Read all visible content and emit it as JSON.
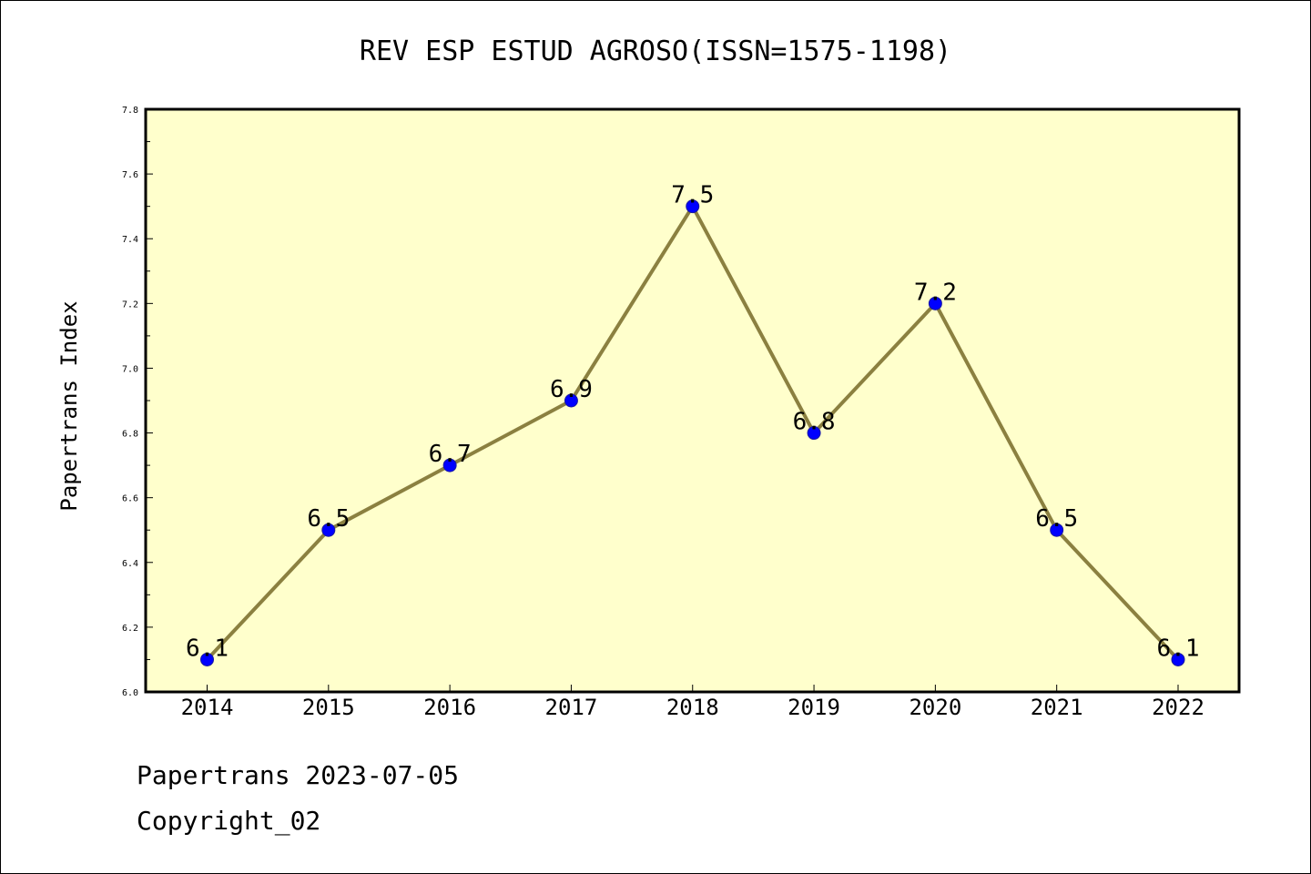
{
  "chart_data": {
    "type": "line",
    "title": "REV ESP ESTUD AGROSO(ISSN=1575-1198)",
    "xlabel": "",
    "ylabel": "Papertrans Index",
    "categories": [
      "2014",
      "2015",
      "2016",
      "2017",
      "2018",
      "2019",
      "2020",
      "2021",
      "2022"
    ],
    "values": [
      6.1,
      6.5,
      6.7,
      6.9,
      7.5,
      6.8,
      7.2,
      6.5,
      6.1
    ],
    "data_labels": [
      "6.1",
      "6.5",
      "6.7",
      "6.9",
      "7.5",
      "6.8",
      "7.2",
      "6.5",
      "6.1"
    ],
    "ylim": [
      6.0,
      7.8
    ],
    "y_ticks": [
      "6.0",
      "6.2",
      "6.4",
      "6.6",
      "6.8",
      "7.0",
      "7.2",
      "7.4",
      "7.6",
      "7.8"
    ],
    "grid": false,
    "legend": "none",
    "colors": {
      "plot_background": "#ffffcc",
      "line": "#8b8040",
      "marker": "#0000ff"
    }
  },
  "footer": {
    "line1": "Papertrans 2023-07-05",
    "line2": "Copyright_02"
  }
}
